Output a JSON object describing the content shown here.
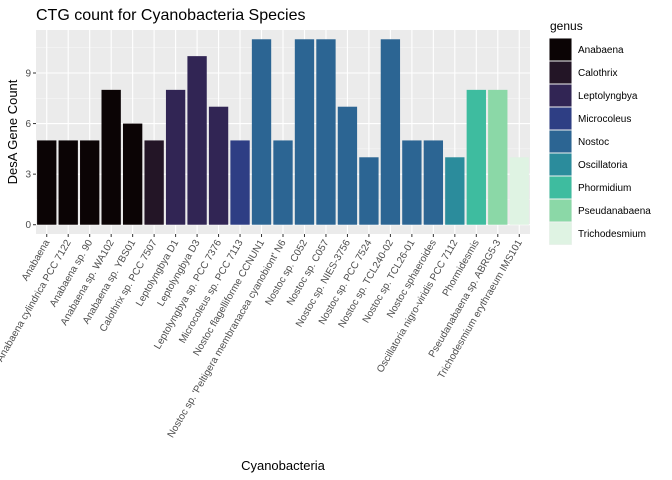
{
  "chart_data": {
    "type": "bar",
    "title": "CTG count for Cyanobacteria Species",
    "xlabel": "Cyanobacteria",
    "ylabel": "DesA Gene Count",
    "ylim": [
      -0.55,
      11.55
    ],
    "yticks": [
      0,
      3,
      6,
      9
    ],
    "grid": true,
    "legend_position": "right",
    "legend_title": "genus",
    "categories": [
      "Anabaena",
      "Anabaena cylindrica PCC 7122",
      "Anabaena sp. 90",
      "Anabaena sp. WA102",
      "Anabaena sp. YBS01",
      "Calothrix sp. PCC 7507",
      "Leptolyngbya D1",
      "Leptolyngbya D3",
      "Leptolyngbya sp. PCC 7376",
      "Microcoleus sp. PCC 7113",
      "Nostoc flagelliforme CCNUN1",
      "Nostoc sp. 'Peltigera membranacea cyanobiont' N6",
      "Nostoc sp. C052",
      "Nostoc sp. C057",
      "Nostoc sp. NIES-3756",
      "Nostoc sp. PCC 7524",
      "Nostoc sp. TCL240-02",
      "Nostoc sp. TCL26-01",
      "Nostoc sphaeroides",
      "Oscillatoria nigro-viridis PCC 7112",
      "Phormidesmis",
      "Pseudanabaena sp. ABRG5-3",
      "Trichodesmium erythraeum IMS101"
    ],
    "values": [
      5,
      5,
      5,
      8,
      6,
      5,
      8,
      10,
      7,
      5,
      11,
      5,
      11,
      11,
      7,
      4,
      11,
      5,
      5,
      4,
      8,
      8,
      4
    ],
    "genus": [
      "Anabaena",
      "Anabaena",
      "Anabaena",
      "Anabaena",
      "Anabaena",
      "Calothrix",
      "Leptolyngbya",
      "Leptolyngbya",
      "Leptolyngbya",
      "Microcoleus",
      "Nostoc",
      "Nostoc",
      "Nostoc",
      "Nostoc",
      "Nostoc",
      "Nostoc",
      "Nostoc",
      "Nostoc",
      "Nostoc",
      "Oscillatoria",
      "Phormidium",
      "Pseudanabaena",
      "Trichodesmium"
    ],
    "legend": [
      {
        "name": "Anabaena",
        "color": "#0b0405"
      },
      {
        "name": "Calothrix",
        "color": "#231526"
      },
      {
        "name": "Leptolyngbya",
        "color": "#312554"
      },
      {
        "name": "Microcoleus",
        "color": "#2e3e84"
      },
      {
        "name": "Nostoc",
        "color": "#2c6593"
      },
      {
        "name": "Oscillatoria",
        "color": "#2b8c9c"
      },
      {
        "name": "Phormidium",
        "color": "#3ebc9f"
      },
      {
        "name": "Pseudanabaena",
        "color": "#8bd8a7"
      },
      {
        "name": "Trichodesmium",
        "color": "#dff3e3"
      }
    ]
  }
}
